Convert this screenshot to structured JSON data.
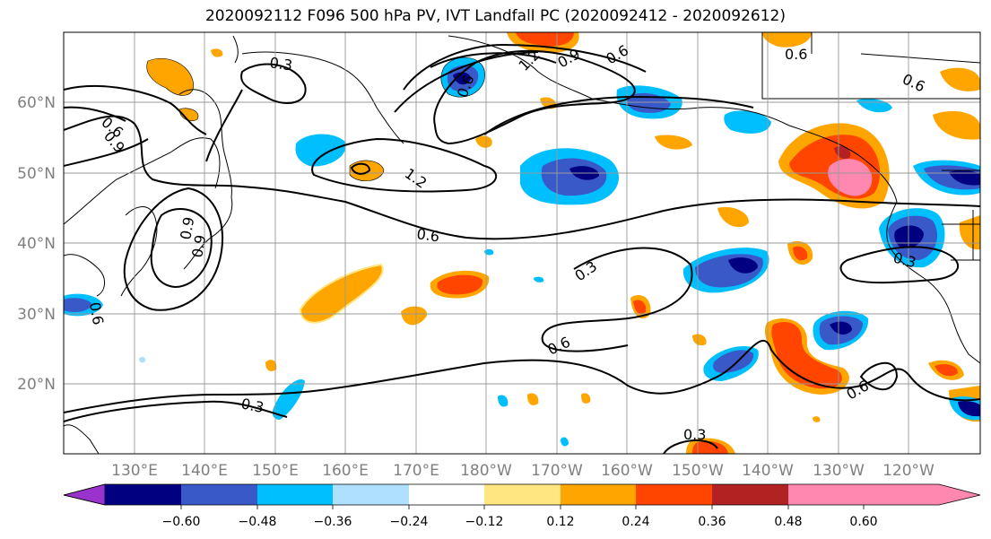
{
  "title": "2020092112 F096 500 hPa PV, IVT Landfall PC (2020092412 - 2020092612)",
  "lat_labels": [
    "60°N",
    "50°N",
    "40°N",
    "30°N",
    "20°N"
  ],
  "lon_labels": [
    "130°E",
    "140°E",
    "150°E",
    "160°E",
    "170°E",
    "180°W",
    "170°W",
    "160°W",
    "150°W",
    "140°W",
    "130°W",
    "120°W"
  ],
  "colorbar": {
    "colors": [
      "#9933cc",
      "#000080",
      "#3a59c9",
      "#00bfff",
      "#b0e0ff",
      "#ffffff",
      "#ffe680",
      "#ffa500",
      "#ff4500",
      "#b22222",
      "#ff88b0"
    ],
    "labels": [
      "−0.60",
      "−0.48",
      "−0.36",
      "−0.24",
      "−0.12",
      "0.12",
      "0.24",
      "0.36",
      "0.48",
      "0.60"
    ]
  },
  "contour_labels": [
    "0.3",
    "0.6",
    "0.9",
    "1.2",
    "0.6",
    "0.3",
    "0.6",
    "0.3",
    "0.3",
    "0.6",
    "0.6",
    "0.3",
    "0.6",
    "0.9",
    "0.9",
    "0.6",
    "0.6",
    "1.2",
    "0.9",
    "0.6"
  ]
}
